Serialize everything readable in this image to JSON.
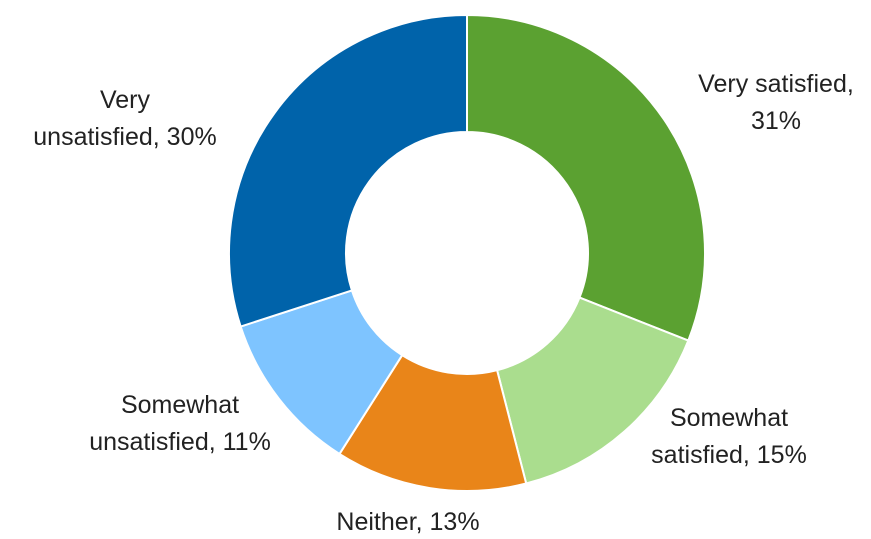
{
  "chart_data": {
    "type": "pie",
    "donut": true,
    "title": "",
    "legend": "none",
    "slices": [
      {
        "label": "Very satisfied",
        "value": 31,
        "value_label": "31%",
        "color": "#5ba131",
        "lines": [
          "Very satisfied,",
          "31%"
        ]
      },
      {
        "label": "Somewhat satisfied",
        "value": 15,
        "value_label": "15%",
        "color": "#aadd8e",
        "lines": [
          "Somewhat",
          "satisfied, 15%"
        ]
      },
      {
        "label": "Neither",
        "value": 13,
        "value_label": "13%",
        "color": "#e98519",
        "lines": [
          "Neither, 13%"
        ]
      },
      {
        "label": "Somewhat unsatisfied",
        "value": 11,
        "value_label": "11%",
        "color": "#7ec4ff",
        "lines": [
          "Somewhat",
          "unsatisfied, 11%"
        ]
      },
      {
        "label": "Very unsatisfied",
        "value": 30,
        "value_label": "30%",
        "color": "#0063aa",
        "lines": [
          "Very",
          "unsatisfied, 30%"
        ]
      }
    ]
  }
}
